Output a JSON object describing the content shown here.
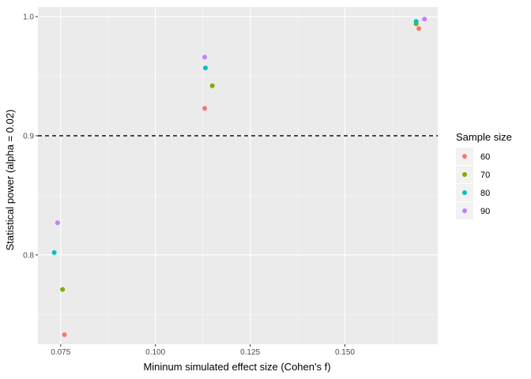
{
  "chart_data": {
    "type": "scatter",
    "title": "",
    "xlabel": "Mininum simulated effect size (Cohen's f)",
    "ylabel": "Statistical power (alpha = 0.02)",
    "xlim": [
      0.069,
      0.1745
    ],
    "ylim": [
      0.725,
      1.008
    ],
    "x_ticks": [
      0.075,
      0.1,
      0.125,
      0.15
    ],
    "x_tick_labels": [
      "0.075",
      "0.100",
      "0.125",
      "0.150"
    ],
    "y_ticks": [
      0.8,
      0.9,
      1.0
    ],
    "y_tick_labels": [
      "0.8",
      "0.9",
      "1.0"
    ],
    "grid": true,
    "reference_line": {
      "y": 0.9,
      "style": "dashed"
    },
    "legend": {
      "title": "Sample size",
      "position": "right"
    },
    "series": [
      {
        "name": "60",
        "color": "#F8766D",
        "x": [
          0.076,
          0.113,
          0.1695
        ],
        "y": [
          0.733,
          0.923,
          0.99
        ]
      },
      {
        "name": "70",
        "color": "#7CAE00",
        "x": [
          0.0755,
          0.115,
          0.1688
        ],
        "y": [
          0.771,
          0.942,
          0.994
        ]
      },
      {
        "name": "80",
        "color": "#00BFC4",
        "x": [
          0.0733,
          0.1132,
          0.1688
        ],
        "y": [
          0.802,
          0.957,
          0.996
        ]
      },
      {
        "name": "90",
        "color": "#C77CFF",
        "x": [
          0.0742,
          0.113,
          0.171
        ],
        "y": [
          0.827,
          0.966,
          0.998
        ]
      }
    ]
  }
}
